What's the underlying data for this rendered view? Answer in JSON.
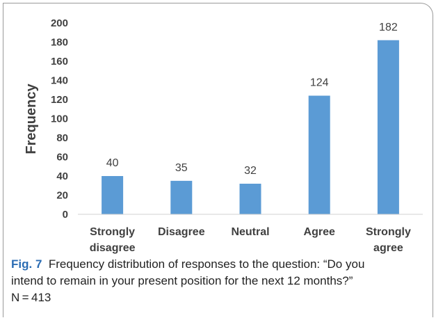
{
  "chart_data": {
    "type": "bar",
    "categories": [
      [
        "Strongly",
        "disagree"
      ],
      [
        "Disagree"
      ],
      [
        "Neutral"
      ],
      [
        "Agree"
      ],
      [
        "Strongly",
        "agree"
      ]
    ],
    "values": [
      40,
      35,
      32,
      124,
      182
    ],
    "data_labels": [
      "40",
      "35",
      "32",
      "124",
      "182"
    ],
    "ylabel": "Frequency",
    "xlabel": "",
    "ylim": [
      0,
      200
    ],
    "y_ticks": [
      "0",
      "20",
      "40",
      "60",
      "80",
      "100",
      "120",
      "140",
      "160",
      "180",
      "200"
    ],
    "grid": false,
    "legend": "none",
    "bar_color": "#5b9bd5"
  },
  "caption": {
    "label": "Fig. 7",
    "line1": "Frequency distribution of responses to the question: “Do you",
    "line2": "intend to remain in your present position for the next 12 months?”",
    "line3": "N = 413"
  },
  "colors": {
    "accent": "#2b6cb3",
    "axis": "#d0d0d0",
    "text": "#404040"
  }
}
